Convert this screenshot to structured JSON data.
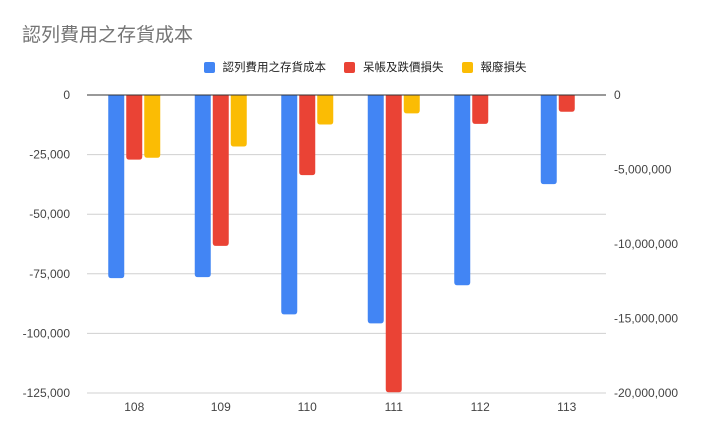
{
  "chart_data": {
    "type": "bar",
    "title": "認列費用之存貨成本",
    "categories": [
      "108",
      "109",
      "110",
      "111",
      "112",
      "113"
    ],
    "series": [
      {
        "name": "認列費用之存貨成本",
        "color": "#4285f4",
        "values": [
          -76800,
          -76400,
          -92000,
          -95800,
          -79800,
          -37400
        ]
      },
      {
        "name": "呆帳及跌價損失",
        "color": "#ea4335",
        "values": [
          -27100,
          -63300,
          -33600,
          -124700,
          -12100,
          -7000
        ]
      },
      {
        "name": "報廢損失",
        "color": "#fbbc04",
        "values": [
          -26300,
          -21600,
          -12400,
          -7700,
          null,
          null
        ]
      }
    ],
    "y_left": {
      "ylim": [
        -125000,
        0
      ],
      "ticks": [
        "0",
        "-25,000",
        "-50,000",
        "-75,000",
        "-100,000",
        "-125,000"
      ]
    },
    "y_right": {
      "ylim": [
        -20000000,
        0
      ],
      "ticks": [
        "0",
        "-5,000,000",
        "-10,000,000",
        "-15,000,000",
        "-20,000,000"
      ]
    },
    "xlabel": "",
    "ylabel": "",
    "grid": true,
    "legend": "top"
  }
}
